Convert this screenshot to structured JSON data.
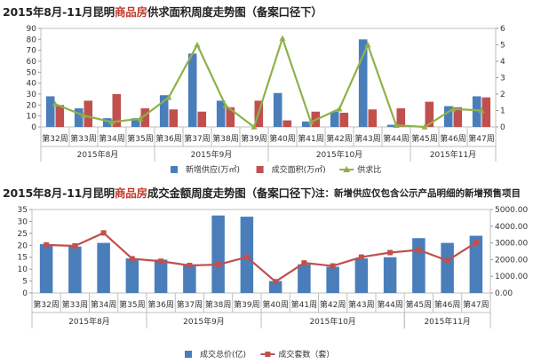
{
  "chart1": {
    "title_prefix": "2015年8月-11月昆明",
    "title_highlight": "商品房",
    "title_suffix": "供求面积周度走势图（备案口径下）",
    "chart_data": {
      "type": "bar",
      "categories": [
        "第32周",
        "第33周",
        "第34周",
        "第35周",
        "第36周",
        "第37周",
        "第38周",
        "第39周",
        "第40周",
        "第41周",
        "第42周",
        "第43周",
        "第44周",
        "第45周",
        "第46周",
        "第47周"
      ],
      "months": [
        {
          "label": "2015年8月",
          "start": 0,
          "end": 4
        },
        {
          "label": "2015年9月",
          "start": 4,
          "end": 8
        },
        {
          "label": "2015年10月",
          "start": 8,
          "end": 13
        },
        {
          "label": "2015年11月",
          "start": 13,
          "end": 16
        }
      ],
      "series": [
        {
          "name": "新增供应(万㎡)",
          "type": "bar",
          "axis": "left",
          "color": "#4a7ebb",
          "values": [
            28,
            17,
            8,
            8,
            29,
            67,
            24,
            0,
            31,
            5,
            14,
            80,
            2,
            0,
            19,
            28
          ]
        },
        {
          "name": "成交面积(万㎡)",
          "type": "bar",
          "axis": "left",
          "color": "#c0504d",
          "values": [
            20,
            24,
            30,
            17,
            16,
            14,
            18,
            24,
            6,
            14,
            13,
            16,
            17,
            23,
            18,
            27
          ]
        },
        {
          "name": "供求比",
          "type": "line",
          "axis": "right",
          "color": "#8db24b",
          "values": [
            1.4,
            0.7,
            0.3,
            0.5,
            1.8,
            5.0,
            1.3,
            0.0,
            5.4,
            0.3,
            1.1,
            5.0,
            0.1,
            0.0,
            1.1,
            1.0
          ]
        }
      ],
      "left_ylim": [
        0,
        90
      ],
      "left_ticks": [
        0,
        10,
        20,
        30,
        40,
        50,
        60,
        70,
        80,
        90
      ],
      "right_ylim": [
        0,
        6
      ],
      "right_ticks": [
        0,
        1,
        2,
        3,
        4,
        5,
        6
      ]
    }
  },
  "chart2": {
    "title_prefix": "2015年8月-11月昆明",
    "title_highlight": "商品房",
    "title_suffix": "成交金额周度走势图（备案口径下）",
    "note": "注：新增供应仅包含公示产品明细的新增预售项目",
    "chart_data": {
      "type": "bar",
      "categories": [
        "第32周",
        "第33周",
        "第34周",
        "第35周",
        "第36周",
        "第37周",
        "第38周",
        "第39周",
        "第40周",
        "第41周",
        "第42周",
        "第43周",
        "第44周",
        "第45周",
        "第46周",
        "第47周"
      ],
      "months": [
        {
          "label": "2015年8月",
          "start": 0,
          "end": 4
        },
        {
          "label": "2015年9月",
          "start": 4,
          "end": 8
        },
        {
          "label": "2015年10月",
          "start": 8,
          "end": 13
        },
        {
          "label": "2015年11月",
          "start": 13,
          "end": 16
        }
      ],
      "series": [
        {
          "name": "成交总价(亿)",
          "type": "bar",
          "axis": "left",
          "color": "#4a7ebb",
          "values": [
            20.5,
            19.5,
            21,
            14.5,
            14,
            12,
            32.5,
            32,
            5,
            12,
            11,
            14.5,
            15,
            23,
            21,
            24
          ]
        },
        {
          "name": "成交套数（套）",
          "type": "line",
          "axis": "right",
          "color": "#c0504d",
          "values": [
            2880,
            2820,
            3600,
            2050,
            1900,
            1650,
            1700,
            2150,
            680,
            1800,
            1620,
            2150,
            2420,
            2580,
            1940,
            3020
          ]
        }
      ],
      "left_ylim": [
        0,
        35
      ],
      "left_ticks": [
        0,
        5,
        10,
        15,
        20,
        25,
        30,
        35
      ],
      "right_ylim": [
        0,
        5000
      ],
      "right_ticks": [
        "0.00",
        "1000.00",
        "2000.00",
        "3000.00",
        "4000.00",
        "5000.00"
      ]
    }
  }
}
